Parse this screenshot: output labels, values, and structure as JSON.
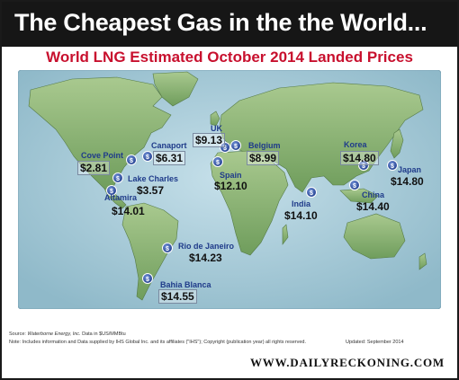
{
  "header": {
    "title": "The Cheapest Gas in the the World..."
  },
  "subtitle": "World LNG Estimated October 2014 Landed Prices",
  "colors": {
    "header_bg": "#161616",
    "subtitle": "#c8102e",
    "ocean": "#9fc4d2",
    "land": "#8fb77a",
    "marker": "#2b4ea2"
  },
  "locations": [
    {
      "id": "cove-point",
      "city": "Cove Point",
      "price": "$2.81"
    },
    {
      "id": "canaport",
      "city": "Canaport",
      "price": "$6.31"
    },
    {
      "id": "lake-charles",
      "city": "Lake Charles",
      "price": "$3.57"
    },
    {
      "id": "altamira",
      "city": "Altamira",
      "price": "$14.01"
    },
    {
      "id": "uk",
      "city": "UK",
      "price": "$9.13"
    },
    {
      "id": "belgium",
      "city": "Belgium",
      "price": "$8.99"
    },
    {
      "id": "spain",
      "city": "Spain",
      "price": "$12.10"
    },
    {
      "id": "india",
      "city": "India",
      "price": "$14.10"
    },
    {
      "id": "korea",
      "city": "Korea",
      "price": "$14.80"
    },
    {
      "id": "japan",
      "city": "Japan",
      "price": "$14.80"
    },
    {
      "id": "china",
      "city": "China",
      "price": "$14.40"
    },
    {
      "id": "rio-de-janeiro",
      "city": "Rio de Janeiro",
      "price": "$14.23"
    },
    {
      "id": "bahia-blanca",
      "city": "Bahia Blanca",
      "price": "$14.55"
    }
  ],
  "footer": {
    "source_label": "Source: ",
    "source_name": "Waterborne Energy, Inc.",
    "source_suffix": "  Data in $US/MMBtu",
    "note": "Note: Includes information and Data supplied by IHS Global Inc. and its affiliates (\"IHS\"); Copyright (publication year) all rights reserved.",
    "updated": "Updated: September 2014",
    "site": "WWW.DAILYRECKONING.COM"
  }
}
